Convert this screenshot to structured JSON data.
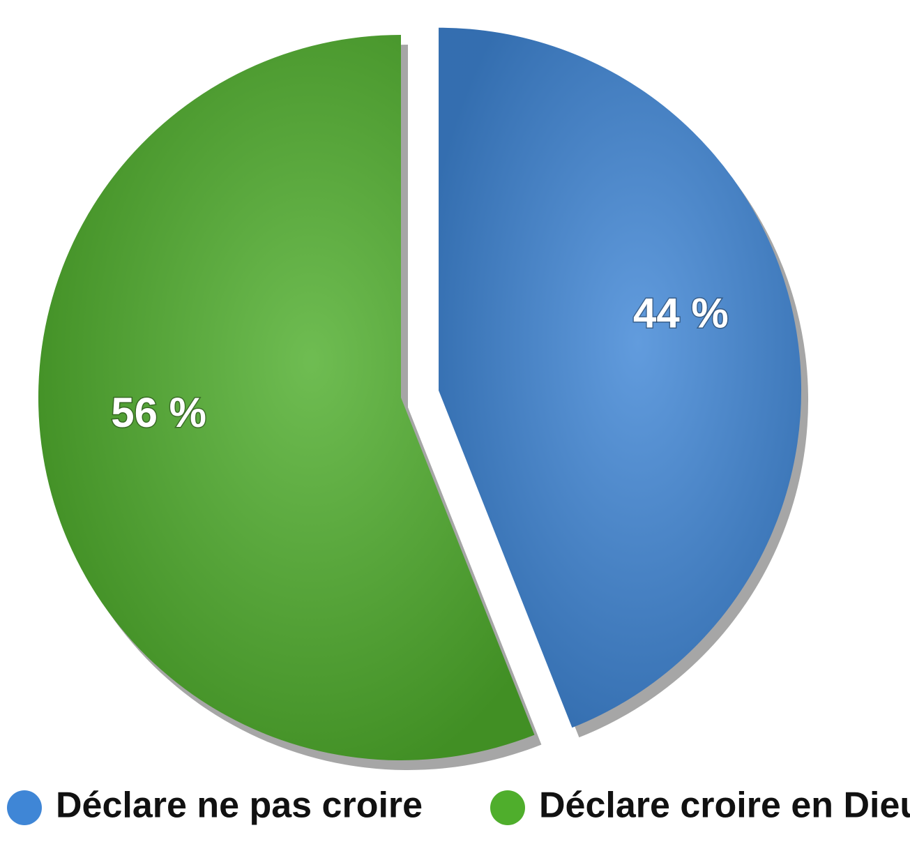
{
  "chart_data": {
    "type": "pie",
    "categories": [
      "Déclare ne pas croire",
      "Déclare croire en Dieu"
    ],
    "values": [
      44,
      56
    ],
    "value_labels": [
      "44 %",
      "56 %"
    ],
    "colors": [
      "#3f86d6",
      "#4fae2c"
    ],
    "explode": [
      true,
      false
    ],
    "legend": "bottom"
  }
}
